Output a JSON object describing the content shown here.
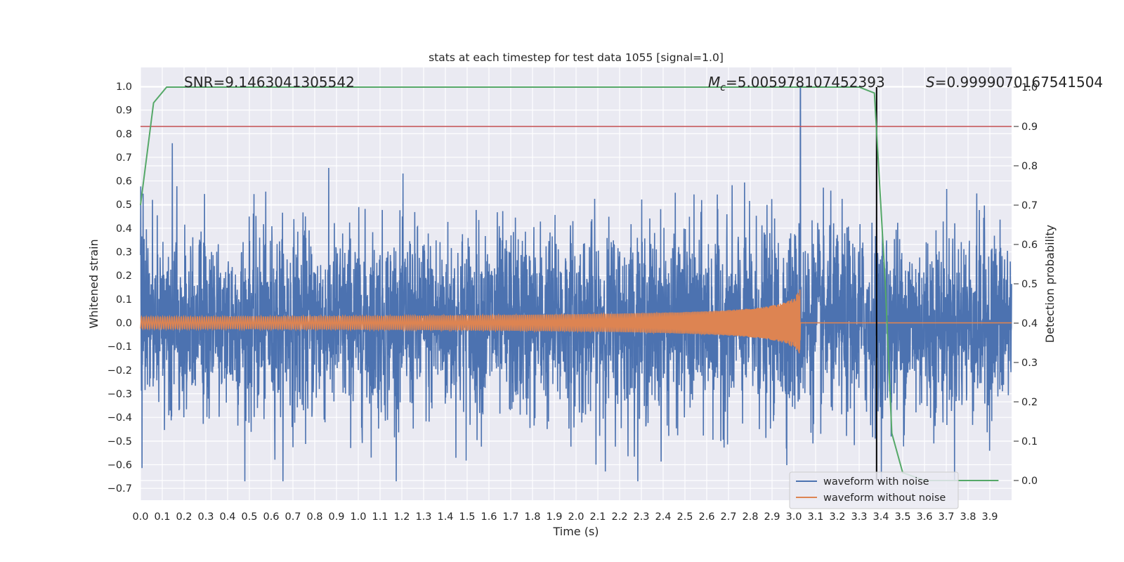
{
  "chart_data": {
    "type": "line",
    "title": "stats at each timestep for test data 1055 [signal=1.0]",
    "xlabel": "Time (s)",
    "ylabel": "Whitened strain",
    "y2label": "Detection probability",
    "xlim": [
      0.0,
      4.0
    ],
    "ylim": [
      -0.75,
      1.08
    ],
    "y2lim": [
      -0.05,
      1.05
    ],
    "x_ticks": [
      "0.0",
      "0.1",
      "0.2",
      "0.3",
      "0.4",
      "0.5",
      "0.6",
      "0.7",
      "0.8",
      "0.9",
      "1.0",
      "1.1",
      "1.2",
      "1.3",
      "1.4",
      "1.5",
      "1.6",
      "1.7",
      "1.8",
      "1.9",
      "2.0",
      "2.1",
      "2.2",
      "2.3",
      "2.4",
      "2.5",
      "2.6",
      "2.7",
      "2.8",
      "2.9",
      "3.0",
      "3.1",
      "3.2",
      "3.3",
      "3.4",
      "3.5",
      "3.6",
      "3.7",
      "3.8",
      "3.9"
    ],
    "y_ticks": [
      "−0.7",
      "−0.6",
      "−0.5",
      "−0.4",
      "−0.3",
      "−0.2",
      "−0.1",
      "0.0",
      "0.1",
      "0.2",
      "0.3",
      "0.4",
      "0.5",
      "0.6",
      "0.7",
      "0.8",
      "0.9",
      "1.0"
    ],
    "y2_ticks": [
      "0.0",
      "0.1",
      "0.2",
      "0.3",
      "0.4",
      "0.5",
      "0.6",
      "0.7",
      "0.8",
      "0.9",
      "1.0"
    ],
    "annotations": {
      "snr": "SNR=9.1463041305542",
      "mc_symbol": "M",
      "mc_sub": "c",
      "mc_value": "=5.005978107452393",
      "s_symbol": "S",
      "s_value": "=0.9999070167541504"
    },
    "series": [
      {
        "name": "waveform with noise",
        "color": "#4c72b0",
        "noise_envelope": [
          -0.67,
          1.0
        ],
        "spike_peak_t": 3.03
      },
      {
        "name": "waveform without noise",
        "color": "#dd8452",
        "chirp_start_amp": 0.025,
        "chirp_end_amp": 0.15,
        "chirp_end_t": 3.03
      },
      {
        "name": "detection probability",
        "color": "#55a868",
        "x": [
          0.0,
          0.06,
          0.12,
          0.2,
          0.5,
          1.0,
          1.5,
          2.0,
          2.5,
          3.0,
          3.3,
          3.37,
          3.42,
          3.45,
          3.5,
          3.6,
          3.7,
          3.8,
          3.9,
          3.94
        ],
        "y": [
          0.7,
          0.96,
          1.0,
          1.0,
          1.0,
          1.0,
          1.0,
          1.0,
          1.0,
          1.0,
          1.0,
          0.985,
          0.5,
          0.12,
          0.02,
          0.0,
          0.0,
          0.0,
          0.0,
          0.0
        ]
      }
    ],
    "threshold_line": {
      "y2": 0.9,
      "color": "#c44e52"
    },
    "marker_line": {
      "x": 3.38,
      "color": "#000000"
    },
    "grid": true,
    "legend": {
      "placement": "lower-right",
      "entries": [
        {
          "label": "waveform with noise",
          "color": "#4c72b0"
        },
        {
          "label": "waveform without noise",
          "color": "#dd8452"
        }
      ]
    }
  }
}
